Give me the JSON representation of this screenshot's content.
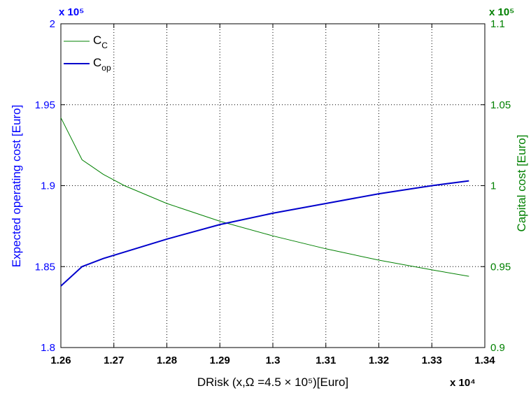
{
  "chart_data": {
    "type": "line",
    "xlabel": "DRisk (x,Ω =4.5 × 10⁵)[Euro]",
    "x_multiplier": "x 10⁴",
    "xlim": [
      12600,
      13400
    ],
    "x_ticks": [
      12600,
      12700,
      12800,
      12900,
      13000,
      13100,
      13200,
      13300,
      13400
    ],
    "x_tick_labels": [
      "1.26",
      "1.27",
      "1.28",
      "1.29",
      "1.3",
      "1.31",
      "1.32",
      "1.33",
      "1.34"
    ],
    "y_left": {
      "label": "Expected operating cost [Euro]",
      "multiplier": "x 10⁵",
      "lim": [
        180000,
        200000
      ],
      "ticks": [
        180000,
        185000,
        190000,
        195000,
        200000
      ],
      "tick_labels": [
        "1.8",
        "1.85",
        "1.9",
        "1.95",
        "2"
      ],
      "color": "#0000ff"
    },
    "y_right": {
      "label": "Capital cost [Euro]",
      "multiplier": "x 10⁵",
      "lim": [
        90000,
        110000
      ],
      "ticks": [
        90000,
        95000,
        100000,
        105000,
        110000
      ],
      "tick_labels": [
        "0.9",
        "0.95",
        "1",
        "1.05",
        "1.1"
      ],
      "color": "#008000"
    },
    "grid": true,
    "legend_placement": "top-left",
    "series": [
      {
        "name": "C_C",
        "name_main": "C",
        "name_sub": "C",
        "axis": "right",
        "color": "#008000",
        "x": [
          12600,
          12640,
          12680,
          12720,
          12800,
          12900,
          13000,
          13100,
          13200,
          13300,
          13370
        ],
        "y": [
          104200,
          101600,
          100700,
          100000,
          98900,
          97800,
          96900,
          96100,
          95400,
          94800,
          94400
        ]
      },
      {
        "name": "C_op",
        "name_main": "C",
        "name_sub": "op",
        "axis": "left",
        "color": "#0000cc",
        "x": [
          12600,
          12640,
          12680,
          12720,
          12800,
          12900,
          13000,
          13100,
          13200,
          13300,
          13370
        ],
        "y": [
          183800,
          185000,
          185500,
          185900,
          186700,
          187600,
          188300,
          188900,
          189500,
          190000,
          190300
        ]
      }
    ]
  }
}
